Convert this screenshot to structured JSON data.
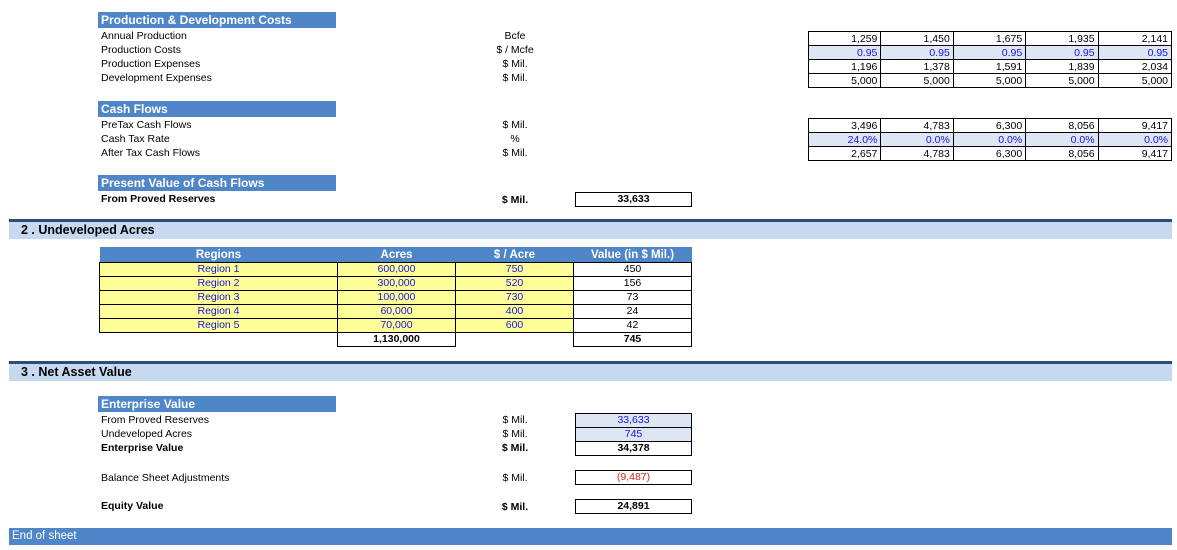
{
  "production": {
    "header": "Production & Development Costs",
    "rows": [
      {
        "label": "Annual Production",
        "unit": "Bcfe",
        "values": [
          "1,259",
          "1,450",
          "1,675",
          "1,935",
          "2,141"
        ]
      },
      {
        "label": "Production Costs",
        "unit": "$ / Mcfe",
        "values": [
          "0.95",
          "0.95",
          "0.95",
          "0.95",
          "0.95"
        ]
      },
      {
        "label": "Production Expenses",
        "unit": "$ Mil.",
        "values": [
          "1,196",
          "1,378",
          "1,591",
          "1,839",
          "2,034"
        ]
      },
      {
        "label": "Development Expenses",
        "unit": "$ Mil.",
        "values": [
          "5,000",
          "5,000",
          "5,000",
          "5,000",
          "5,000"
        ]
      }
    ]
  },
  "cashflows": {
    "header": "Cash Flows",
    "rows": [
      {
        "label": "PreTax Cash Flows",
        "unit": "$ Mil.",
        "values": [
          "3,496",
          "4,783",
          "6,300",
          "8,056",
          "9,417"
        ]
      },
      {
        "label": "Cash Tax Rate",
        "unit": "%",
        "values": [
          "24.0%",
          "0.0%",
          "0.0%",
          "0.0%",
          "0.0%"
        ]
      },
      {
        "label": "After Tax Cash Flows",
        "unit": "$ Mil.",
        "values": [
          "2,657",
          "4,783",
          "6,300",
          "8,056",
          "9,417"
        ]
      }
    ]
  },
  "pv": {
    "header": "Present Value of Cash Flows",
    "label": "From Proved Reserves",
    "unit": "$ Mil.",
    "value": "33,633"
  },
  "section2": {
    "title": "2 . Undeveloped Acres",
    "columns": [
      "Regions",
      "Acres",
      "$ / Acre",
      "Value (in $ Mil.)"
    ],
    "rows": [
      [
        "Region 1",
        "600,000",
        "750",
        "450"
      ],
      [
        "Region 2",
        "300,000",
        "520",
        "156"
      ],
      [
        "Region 3",
        "100,000",
        "730",
        "73"
      ],
      [
        "Region 4",
        "60,000",
        "400",
        "24"
      ],
      [
        "Region 5",
        "70,000",
        "600",
        "42"
      ]
    ],
    "total_acres": "1,130,000",
    "total_value": "745"
  },
  "section3": {
    "title": "3 . Net Asset Value",
    "header": "Enterprise Value",
    "proved_label": "From Proved Reserves",
    "proved_unit": "$ Mil.",
    "proved_value": "33,633",
    "undeveloped_label": "Undeveloped Acres",
    "undeveloped_unit": "$ Mil.",
    "undeveloped_value": "745",
    "ev_label": "Enterprise Value",
    "ev_unit": "$ Mil.",
    "ev_value": "34,378",
    "bsa_label": "Balance Sheet Adjustments",
    "bsa_unit": "$ Mil.",
    "bsa_value": "(9,487)",
    "equity_label": "Equity Value",
    "equity_unit": "$ Mil.",
    "equity_value": "24,891"
  },
  "footer": {
    "end_label": "End of sheet"
  },
  "colors": {
    "header_blue": "#4f86c8",
    "section_light": "#c6d9ef",
    "input_blue": "#1515e6",
    "negative_red": "#e02020",
    "highlight_yellow": "#ffff99"
  }
}
